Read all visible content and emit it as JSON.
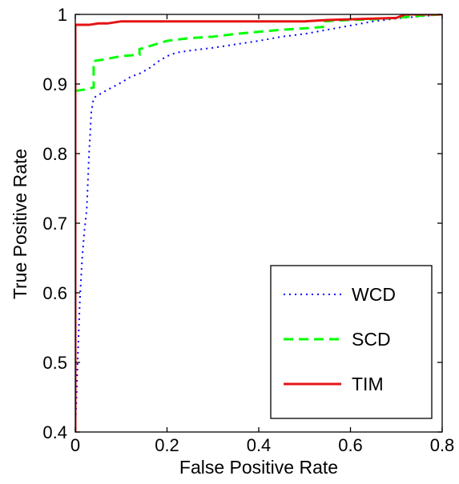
{
  "chart_data": {
    "type": "line",
    "title": "",
    "xlabel": "False Positive Rate",
    "ylabel": "True Positive Rate",
    "xlim": [
      0,
      0.8
    ],
    "ylim": [
      0.4,
      1
    ],
    "xticks": [
      0,
      0.2,
      0.4,
      0.6,
      0.8
    ],
    "xtick_labels": [
      "0",
      "0.2",
      "0.4",
      "0.6",
      "0.8"
    ],
    "yticks": [
      0.4,
      0.5,
      0.6,
      0.7,
      0.8,
      0.9,
      1
    ],
    "ytick_labels": [
      "0.4",
      "0.5",
      "0.6",
      "0.7",
      "0.8",
      "0.9",
      "1"
    ],
    "grid": false,
    "legend_position": "bottom-right",
    "series": [
      {
        "name": "WCD",
        "color": "#0000ff",
        "style": "dotted",
        "x": [
          0,
          0.005,
          0.01,
          0.015,
          0.02,
          0.025,
          0.03,
          0.035,
          0.04,
          0.045,
          0.05,
          0.06,
          0.08,
          0.1,
          0.12,
          0.14,
          0.16,
          0.18,
          0.2,
          0.22,
          0.25,
          0.3,
          0.35,
          0.4,
          0.45,
          0.5,
          0.55,
          0.6,
          0.65,
          0.7,
          0.75,
          0.8
        ],
        "y": [
          0.4,
          0.5,
          0.59,
          0.65,
          0.69,
          0.72,
          0.8,
          0.86,
          0.88,
          0.882,
          0.884,
          0.888,
          0.895,
          0.902,
          0.91,
          0.915,
          0.922,
          0.932,
          0.94,
          0.945,
          0.948,
          0.952,
          0.957,
          0.962,
          0.968,
          0.972,
          0.978,
          0.984,
          0.99,
          0.994,
          0.997,
          1.0
        ]
      },
      {
        "name": "SCD",
        "color": "#00ff00",
        "style": "dashed",
        "x": [
          0,
          0.02,
          0.04,
          0.04,
          0.06,
          0.1,
          0.14,
          0.14,
          0.2,
          0.25,
          0.3,
          0.35,
          0.4,
          0.45,
          0.5,
          0.54,
          0.54,
          0.6,
          0.65,
          0.7,
          0.75,
          0.8
        ],
        "y": [
          0.89,
          0.892,
          0.895,
          0.933,
          0.935,
          0.94,
          0.942,
          0.95,
          0.962,
          0.966,
          0.968,
          0.972,
          0.975,
          0.978,
          0.98,
          0.982,
          0.99,
          0.992,
          0.993,
          0.995,
          0.998,
          1.0
        ]
      },
      {
        "name": "TIM",
        "color": "#e61414",
        "style": "solid",
        "x": [
          0,
          0,
          0.03,
          0.05,
          0.07,
          0.09,
          0.1,
          0.15,
          0.2,
          0.3,
          0.4,
          0.5,
          0.55,
          0.6,
          0.7,
          0.72,
          0.8
        ],
        "y": [
          0.4,
          0.985,
          0.985,
          0.987,
          0.987,
          0.989,
          0.99,
          0.99,
          0.99,
          0.99,
          0.99,
          0.99,
          0.992,
          0.993,
          0.995,
          1.0,
          1.0
        ]
      }
    ]
  }
}
